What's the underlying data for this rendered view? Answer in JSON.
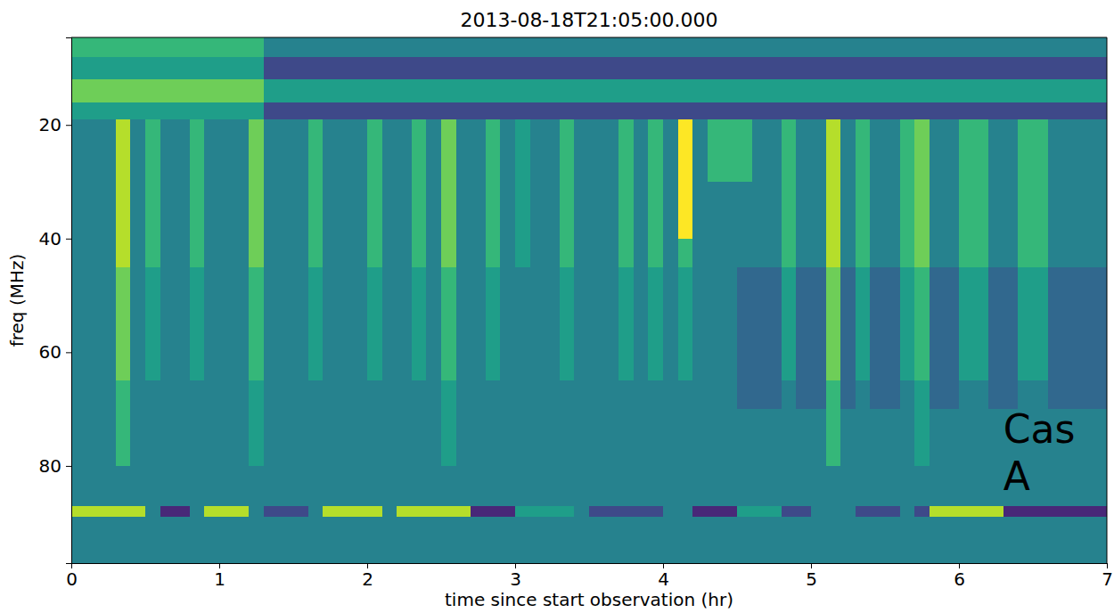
{
  "chart_data": {
    "type": "heatmap",
    "title": "2013-08-18T21:05:00.000",
    "x_label": "time since start observation (hr)",
    "y_label": "freq (MHz)",
    "xlim": [
      0,
      7
    ],
    "ylim": [
      4.6,
      97.1
    ],
    "xticks": [
      0,
      1,
      2,
      3,
      4,
      5,
      6,
      7
    ],
    "yticks": [
      20,
      40,
      60,
      80
    ],
    "color": "viridis",
    "clim": [
      0,
      9
    ],
    "annotations": [
      {
        "text": "Cas A",
        "x": 6.3,
        "y": 76
      }
    ],
    "xbins": [
      0,
      0.1,
      0.2,
      0.3,
      0.4,
      0.5,
      0.6,
      0.7,
      0.8,
      0.9,
      1,
      1.1,
      1.2,
      1.3,
      1.4,
      1.5,
      1.6,
      1.7,
      1.8,
      1.9,
      2,
      2.1,
      2.2,
      2.3,
      2.4,
      2.5,
      2.6,
      2.7,
      2.8,
      2.9,
      3,
      3.1,
      3.2,
      3.3,
      3.4,
      3.5,
      3.6,
      3.7,
      3.8,
      3.9,
      4,
      4.1,
      4.2,
      4.3,
      4.4,
      4.5,
      4.6,
      4.7,
      4.8,
      4.9,
      5,
      5.1,
      5.2,
      5.3,
      5.4,
      5.5,
      5.6,
      5.7,
      5.8,
      5.9,
      6,
      6.1,
      6.2,
      6.3,
      6.4,
      6.5,
      6.6,
      6.7,
      6.8,
      6.9,
      7
    ],
    "ybins": [
      4.6,
      8,
      12,
      16,
      19,
      25,
      30,
      35,
      40,
      45,
      50,
      55,
      60,
      65,
      70,
      75,
      80,
      87,
      89,
      97.1
    ],
    "cells": [
      [
        6,
        6,
        6,
        6,
        6,
        6,
        6,
        6,
        6,
        6,
        6,
        6,
        6,
        4,
        4,
        4,
        4,
        4,
        4,
        4,
        4,
        4,
        4,
        4,
        4,
        4,
        4,
        4,
        4,
        4,
        4,
        4,
        4,
        4,
        4,
        4,
        4,
        4,
        4,
        4,
        4,
        4,
        4,
        4,
        4,
        4,
        4,
        4,
        4,
        4,
        4,
        4,
        4,
        4,
        4,
        4,
        4,
        4,
        4,
        4,
        4,
        4,
        4,
        4,
        4,
        4,
        4,
        4,
        4,
        4
      ],
      [
        5,
        5,
        5,
        5,
        5,
        5,
        5,
        5,
        5,
        5,
        5,
        5,
        5,
        2,
        2,
        2,
        2,
        2,
        2,
        2,
        2,
        2,
        2,
        2,
        2,
        2,
        2,
        2,
        2,
        2,
        2,
        2,
        2,
        2,
        2,
        2,
        2,
        2,
        2,
        2,
        2,
        2,
        2,
        2,
        2,
        2,
        2,
        2,
        2,
        2,
        2,
        2,
        2,
        2,
        2,
        2,
        2,
        2,
        2,
        2,
        2,
        2,
        2,
        2,
        2,
        2,
        2,
        2,
        2,
        2
      ],
      [
        7,
        7,
        7,
        7,
        7,
        7,
        7,
        7,
        7,
        7,
        7,
        7,
        7,
        5,
        5,
        5,
        5,
        5,
        5,
        5,
        5,
        5,
        5,
        5,
        5,
        5,
        5,
        5,
        5,
        5,
        5,
        5,
        5,
        5,
        5,
        5,
        5,
        5,
        5,
        5,
        5,
        5,
        5,
        5,
        5,
        5,
        5,
        5,
        5,
        5,
        5,
        5,
        5,
        5,
        5,
        5,
        5,
        5,
        5,
        5,
        5,
        5,
        5,
        5,
        5,
        5,
        5,
        5,
        5,
        5
      ],
      [
        5,
        5,
        5,
        5,
        5,
        5,
        5,
        5,
        5,
        5,
        5,
        5,
        5,
        2,
        2,
        2,
        2,
        2,
        2,
        2,
        2,
        2,
        2,
        2,
        2,
        2,
        2,
        2,
        2,
        2,
        2,
        2,
        2,
        2,
        2,
        2,
        2,
        2,
        2,
        2,
        2,
        2,
        2,
        2,
        2,
        2,
        2,
        2,
        2,
        2,
        2,
        2,
        2,
        2,
        2,
        2,
        2,
        2,
        2,
        2,
        2,
        2,
        2,
        2,
        2,
        2,
        2,
        2,
        2,
        2
      ],
      [
        4,
        4,
        4,
        8,
        4,
        6,
        4,
        4,
        6,
        4,
        4,
        4,
        7,
        4,
        4,
        4,
        6,
        4,
        4,
        4,
        6,
        4,
        4,
        6,
        4,
        7,
        4,
        4,
        6,
        4,
        5,
        4,
        4,
        6,
        4,
        4,
        4,
        6,
        4,
        6,
        4,
        9,
        4,
        6,
        6,
        6,
        4,
        4,
        6,
        4,
        4,
        8,
        4,
        6,
        4,
        4,
        6,
        7,
        4,
        4,
        6,
        6,
        4,
        4,
        6,
        6,
        4,
        4,
        4,
        4
      ],
      [
        4,
        4,
        4,
        8,
        4,
        6,
        4,
        4,
        6,
        4,
        4,
        4,
        7,
        4,
        4,
        4,
        6,
        4,
        4,
        4,
        6,
        4,
        4,
        6,
        4,
        7,
        4,
        4,
        6,
        4,
        5,
        4,
        4,
        6,
        4,
        4,
        4,
        6,
        4,
        6,
        4,
        9,
        4,
        6,
        6,
        6,
        4,
        4,
        6,
        4,
        4,
        8,
        4,
        6,
        4,
        4,
        6,
        7,
        4,
        4,
        6,
        6,
        4,
        4,
        6,
        6,
        4,
        4,
        4,
        4
      ],
      [
        4,
        4,
        4,
        8,
        4,
        6,
        4,
        4,
        6,
        4,
        4,
        4,
        7,
        4,
        4,
        4,
        6,
        4,
        4,
        4,
        6,
        4,
        4,
        6,
        4,
        7,
        4,
        4,
        6,
        4,
        5,
        4,
        4,
        6,
        4,
        4,
        4,
        6,
        4,
        6,
        4,
        9,
        4,
        4,
        4,
        4,
        4,
        4,
        6,
        4,
        4,
        8,
        4,
        6,
        4,
        4,
        6,
        7,
        4,
        4,
        6,
        6,
        4,
        4,
        6,
        6,
        4,
        4,
        4,
        4
      ],
      [
        4,
        4,
        4,
        8,
        4,
        6,
        4,
        4,
        6,
        4,
        4,
        4,
        7,
        4,
        4,
        4,
        6,
        4,
        4,
        4,
        6,
        4,
        4,
        6,
        4,
        7,
        4,
        4,
        6,
        4,
        5,
        4,
        4,
        6,
        4,
        4,
        4,
        6,
        4,
        6,
        4,
        9,
        4,
        4,
        4,
        4,
        4,
        4,
        6,
        4,
        4,
        8,
        4,
        6,
        4,
        4,
        6,
        7,
        4,
        4,
        6,
        6,
        4,
        4,
        6,
        6,
        4,
        4,
        4,
        4
      ],
      [
        4,
        4,
        4,
        8,
        4,
        6,
        4,
        4,
        6,
        4,
        4,
        4,
        7,
        4,
        4,
        4,
        6,
        4,
        4,
        4,
        6,
        4,
        4,
        6,
        4,
        7,
        4,
        4,
        6,
        4,
        5,
        4,
        4,
        6,
        4,
        4,
        4,
        6,
        4,
        6,
        4,
        6,
        4,
        4,
        4,
        4,
        4,
        4,
        6,
        4,
        4,
        8,
        4,
        6,
        4,
        4,
        6,
        7,
        4,
        4,
        6,
        6,
        4,
        4,
        6,
        6,
        4,
        4,
        4,
        4
      ],
      [
        4,
        4,
        4,
        7,
        4,
        5,
        4,
        4,
        5,
        4,
        4,
        4,
        6,
        4,
        4,
        4,
        5,
        4,
        4,
        4,
        5,
        4,
        4,
        5,
        4,
        6,
        4,
        4,
        5,
        4,
        4,
        4,
        4,
        5,
        4,
        4,
        4,
        5,
        4,
        5,
        4,
        5,
        4,
        4,
        4,
        3,
        3,
        3,
        5,
        3,
        3,
        7,
        3,
        5,
        3,
        3,
        5,
        6,
        3,
        3,
        5,
        5,
        3,
        3,
        5,
        5,
        3,
        3,
        3,
        3
      ],
      [
        4,
        4,
        4,
        7,
        4,
        5,
        4,
        4,
        5,
        4,
        4,
        4,
        6,
        4,
        4,
        4,
        5,
        4,
        4,
        4,
        5,
        4,
        4,
        5,
        4,
        6,
        4,
        4,
        5,
        4,
        4,
        4,
        4,
        5,
        4,
        4,
        4,
        5,
        4,
        5,
        4,
        5,
        4,
        4,
        4,
        3,
        3,
        3,
        5,
        3,
        3,
        7,
        3,
        5,
        3,
        3,
        5,
        6,
        3,
        3,
        5,
        5,
        3,
        3,
        5,
        5,
        3,
        3,
        3,
        3
      ],
      [
        4,
        4,
        4,
        7,
        4,
        5,
        4,
        4,
        5,
        4,
        4,
        4,
        6,
        4,
        4,
        4,
        5,
        4,
        4,
        4,
        5,
        4,
        4,
        5,
        4,
        6,
        4,
        4,
        5,
        4,
        4,
        4,
        4,
        5,
        4,
        4,
        4,
        5,
        4,
        5,
        4,
        5,
        4,
        4,
        4,
        3,
        3,
        3,
        5,
        3,
        3,
        7,
        3,
        5,
        3,
        3,
        5,
        6,
        3,
        3,
        5,
        5,
        3,
        3,
        5,
        5,
        3,
        3,
        3,
        3
      ],
      [
        4,
        4,
        4,
        7,
        4,
        5,
        4,
        4,
        5,
        4,
        4,
        4,
        6,
        4,
        4,
        4,
        5,
        4,
        4,
        4,
        5,
        4,
        4,
        5,
        4,
        6,
        4,
        4,
        5,
        4,
        4,
        4,
        4,
        5,
        4,
        4,
        4,
        5,
        4,
        5,
        4,
        5,
        4,
        4,
        4,
        3,
        3,
        3,
        5,
        3,
        3,
        7,
        3,
        5,
        3,
        3,
        5,
        6,
        3,
        3,
        5,
        5,
        3,
        3,
        5,
        5,
        3,
        3,
        3,
        3
      ],
      [
        4,
        4,
        4,
        6,
        4,
        4,
        4,
        4,
        4,
        4,
        4,
        4,
        5,
        4,
        4,
        4,
        4,
        4,
        4,
        4,
        4,
        4,
        4,
        4,
        4,
        5,
        4,
        4,
        4,
        4,
        4,
        4,
        4,
        4,
        4,
        4,
        4,
        4,
        4,
        4,
        4,
        4,
        4,
        4,
        4,
        3,
        3,
        3,
        4,
        3,
        3,
        6,
        3,
        4,
        3,
        3,
        4,
        5,
        3,
        3,
        4,
        4,
        3,
        3,
        4,
        4,
        3,
        3,
        3,
        3
      ],
      [
        4,
        4,
        4,
        6,
        4,
        4,
        4,
        4,
        4,
        4,
        4,
        4,
        5,
        4,
        4,
        4,
        4,
        4,
        4,
        4,
        4,
        4,
        4,
        4,
        4,
        5,
        4,
        4,
        4,
        4,
        4,
        4,
        4,
        4,
        4,
        4,
        4,
        4,
        4,
        4,
        4,
        4,
        4,
        4,
        4,
        4,
        4,
        4,
        4,
        4,
        4,
        6,
        4,
        4,
        4,
        4,
        4,
        5,
        4,
        4,
        4,
        4,
        4,
        4,
        4,
        4,
        4,
        4,
        4,
        4
      ],
      [
        4,
        4,
        4,
        6,
        4,
        4,
        4,
        4,
        4,
        4,
        4,
        4,
        5,
        4,
        4,
        4,
        4,
        4,
        4,
        4,
        4,
        4,
        4,
        4,
        4,
        5,
        4,
        4,
        4,
        4,
        4,
        4,
        4,
        4,
        4,
        4,
        4,
        4,
        4,
        4,
        4,
        4,
        4,
        4,
        4,
        4,
        4,
        4,
        4,
        4,
        4,
        6,
        4,
        4,
        4,
        4,
        4,
        5,
        4,
        4,
        4,
        4,
        4,
        4,
        4,
        4,
        4,
        4,
        4,
        4
      ],
      [
        4,
        4,
        4,
        4,
        4,
        4,
        4,
        4,
        4,
        4,
        4,
        4,
        4,
        4,
        4,
        4,
        4,
        4,
        4,
        4,
        4,
        4,
        4,
        4,
        4,
        4,
        4,
        4,
        4,
        4,
        4,
        4,
        4,
        4,
        4,
        4,
        4,
        4,
        4,
        4,
        4,
        4,
        4,
        4,
        4,
        4,
        4,
        4,
        4,
        4,
        4,
        4,
        4,
        4,
        4,
        4,
        4,
        4,
        4,
        4,
        4,
        4,
        4,
        4,
        4,
        4,
        4,
        4,
        4,
        4
      ],
      [
        8,
        8,
        8,
        8,
        8,
        4,
        1,
        1,
        4,
        8,
        8,
        8,
        4,
        2,
        2,
        2,
        4,
        8,
        8,
        8,
        8,
        4,
        8,
        8,
        8,
        8,
        8,
        1,
        1,
        1,
        5,
        5,
        5,
        5,
        4,
        2,
        2,
        2,
        2,
        2,
        4,
        4,
        1,
        1,
        1,
        5,
        5,
        5,
        2,
        2,
        4,
        4,
        4,
        2,
        2,
        2,
        4,
        2,
        8,
        8,
        8,
        8,
        8,
        1,
        1,
        1,
        1,
        1,
        1,
        1
      ],
      [
        4,
        4,
        4,
        4,
        4,
        4,
        4,
        4,
        4,
        4,
        4,
        4,
        4,
        4,
        4,
        4,
        4,
        4,
        4,
        4,
        4,
        4,
        4,
        4,
        4,
        4,
        4,
        4,
        4,
        4,
        4,
        4,
        4,
        4,
        4,
        4,
        4,
        4,
        4,
        4,
        4,
        4,
        4,
        4,
        4,
        4,
        4,
        4,
        4,
        4,
        4,
        4,
        4,
        4,
        4,
        4,
        4,
        4,
        4,
        4,
        4,
        4,
        4,
        4,
        4,
        4,
        4,
        4,
        4,
        4
      ]
    ]
  }
}
